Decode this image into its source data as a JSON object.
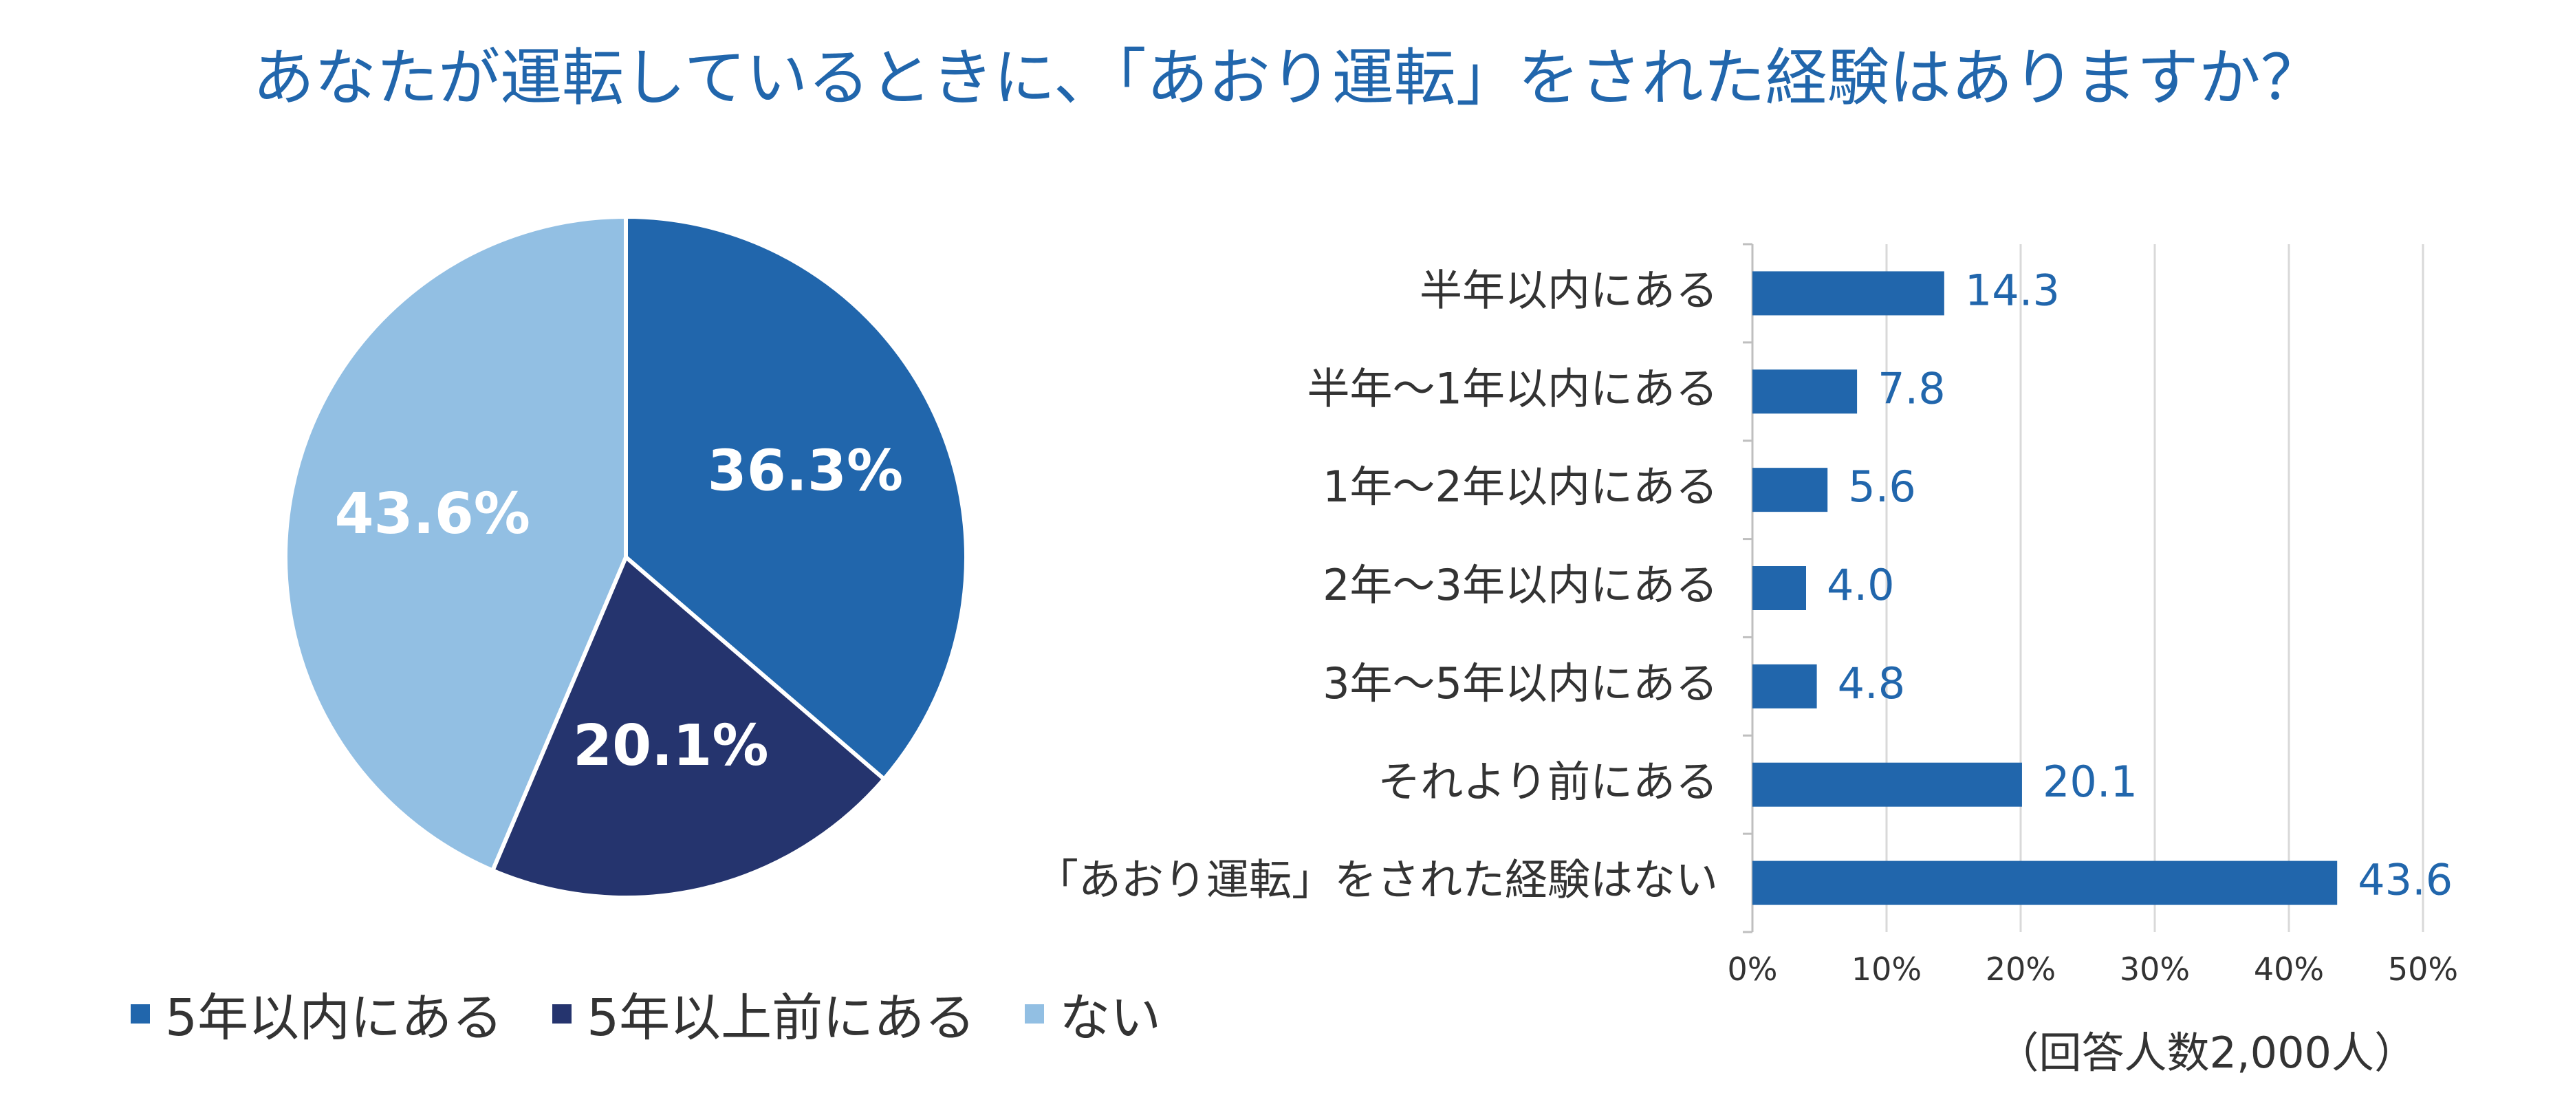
{
  "title": "あなたが運転しているときに、「あおり運転」をされた経験はありますか？",
  "colors": {
    "dark_blue": "#2166ac",
    "navy": "#25346e",
    "light_blue": "#92bfe3",
    "grid": "#d9d9d9",
    "text": "#333333"
  },
  "note": "（回答人数2,000人）",
  "chart_data": [
    {
      "type": "pie",
      "title": "",
      "slices": [
        {
          "label": "5年以内にある",
          "value": 36.3,
          "display": "36.3%",
          "color": "#2166ac"
        },
        {
          "label": "5年以上前にある",
          "value": 20.1,
          "display": "20.1%",
          "color": "#25346e"
        },
        {
          "label": "ない",
          "value": 43.6,
          "display": "43.6%",
          "color": "#92bfe3"
        }
      ],
      "start_angle_deg": 0,
      "direction": "clockwise",
      "legend_position": "bottom"
    },
    {
      "type": "bar",
      "orientation": "horizontal",
      "title": "",
      "categories": [
        "半年以内にある",
        "半年〜1年以内にある",
        "1年〜2年以内にある",
        "2年〜3年以内にある",
        "3年〜5年以内にある",
        "それより前にある",
        "「あおり運転」をされた経験はない"
      ],
      "values": [
        14.3,
        7.8,
        5.6,
        4.0,
        4.8,
        20.1,
        43.6
      ],
      "value_labels": [
        "14.3",
        "7.8",
        "5.6",
        "4.0",
        "4.8",
        "20.1",
        "43.6"
      ],
      "xlim": [
        0,
        50
      ],
      "xticks": [
        0,
        10,
        20,
        30,
        40,
        50
      ],
      "xtick_labels": [
        "0%",
        "10%",
        "20%",
        "30%",
        "40%",
        "50%"
      ],
      "xlabel": "",
      "ylabel": "",
      "grid": true,
      "color": "#2166ac"
    }
  ]
}
